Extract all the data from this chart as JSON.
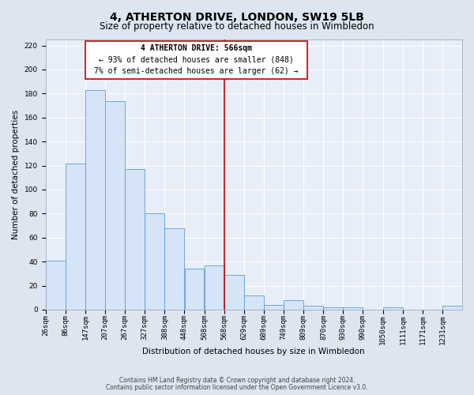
{
  "title": "4, ATHERTON DRIVE, LONDON, SW19 5LB",
  "subtitle": "Size of property relative to detached houses in Wimbledon",
  "xlabel": "Distribution of detached houses by size in Wimbledon",
  "ylabel": "Number of detached properties",
  "bar_labels": [
    "26sqm",
    "86sqm",
    "147sqm",
    "207sqm",
    "267sqm",
    "327sqm",
    "388sqm",
    "448sqm",
    "508sqm",
    "568sqm",
    "629sqm",
    "689sqm",
    "749sqm",
    "809sqm",
    "870sqm",
    "930sqm",
    "990sqm",
    "1050sqm",
    "1111sqm",
    "1171sqm",
    "1231sqm"
  ],
  "bar_values": [
    41,
    122,
    183,
    174,
    117,
    80,
    68,
    34,
    37,
    29,
    12,
    4,
    8,
    3,
    2,
    2,
    0,
    2,
    0,
    0,
    3
  ],
  "bar_edges": [
    26,
    86,
    147,
    207,
    267,
    327,
    388,
    448,
    508,
    568,
    629,
    689,
    749,
    809,
    870,
    930,
    990,
    1050,
    1111,
    1171,
    1231,
    1291
  ],
  "bar_color_fill": "#d6e4f7",
  "bar_color_edge": "#5b9bd5",
  "vline_x": 568,
  "vline_color": "#cc0000",
  "annotation_title": "4 ATHERTON DRIVE: 566sqm",
  "annotation_line1": "← 93% of detached houses are smaller (848)",
  "annotation_line2": "7% of semi-detached houses are larger (62) →",
  "annotation_box_color": "#cc0000",
  "ylim": [
    0,
    225
  ],
  "yticks": [
    0,
    20,
    40,
    60,
    80,
    100,
    120,
    140,
    160,
    180,
    200,
    220
  ],
  "footnote1": "Contains HM Land Registry data © Crown copyright and database right 2024.",
  "footnote2": "Contains public sector information licensed under the Open Government Licence v3.0.",
  "bg_color": "#dde5f0",
  "plot_bg_color": "#e8eef8",
  "grid_color": "#ffffff",
  "title_fontsize": 10,
  "subtitle_fontsize": 8.5,
  "axis_label_fontsize": 7.5,
  "tick_fontsize": 6.5,
  "annotation_fontsize": 7,
  "footnote_fontsize": 5.5
}
